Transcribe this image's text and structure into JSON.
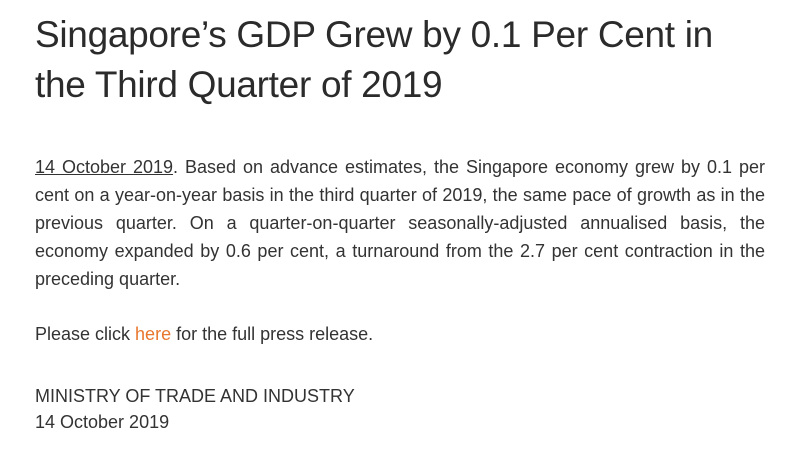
{
  "article": {
    "title": "Singapore’s GDP Grew by 0.1 Per Cent in the Third Quarter of 2019",
    "date_link": "14 October 2019",
    "body_text": ". Based on advance estimates, the Singapore economy grew by 0.1 per cent on a year-on-year basis in the third quarter of 2019, the same pace of growth as in the previous quarter. On a quarter-on-quarter seasonally-adjusted annualised basis, the economy expanded by 0.6 per cent, a turnaround from the 2.7 per cent contraction in the preceding quarter.",
    "click_prefix": "Please click ",
    "click_link": "here",
    "click_suffix": " for the full press release.",
    "signature_org": "MINISTRY OF TRADE AND INDUSTRY",
    "signature_date": "14 October 2019"
  },
  "colors": {
    "link": "#e8772e",
    "text": "#333333"
  }
}
